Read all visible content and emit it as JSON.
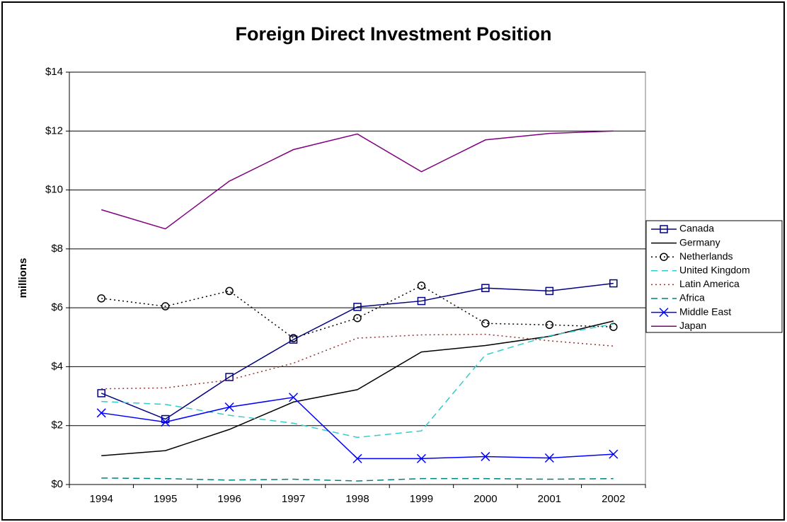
{
  "chart_data": {
    "type": "line",
    "title": "Foreign Direct Investment Position",
    "ylabel": "millions",
    "categories": [
      "1994",
      "1995",
      "1996",
      "1997",
      "1998",
      "1999",
      "2000",
      "2001",
      "2002"
    ],
    "ylim": [
      0,
      14
    ],
    "yticks": [
      {
        "value": 0,
        "label": "$0"
      },
      {
        "value": 2,
        "label": "$2"
      },
      {
        "value": 4,
        "label": "$4"
      },
      {
        "value": 6,
        "label": "$6"
      },
      {
        "value": 8,
        "label": "$8"
      },
      {
        "value": 10,
        "label": "$10"
      },
      {
        "value": 12,
        "label": "$12"
      },
      {
        "value": 14,
        "label": "$14"
      }
    ],
    "grid": true,
    "legend": "right",
    "series": [
      {
        "name": "Canada",
        "color": "#000080",
        "dash": "solid",
        "marker": "square",
        "values": [
          3.1,
          2.22,
          3.65,
          4.92,
          6.03,
          6.23,
          6.67,
          6.57,
          6.83
        ]
      },
      {
        "name": "Germany",
        "color": "#000000",
        "dash": "solid",
        "marker": "none",
        "values": [
          0.98,
          1.15,
          1.87,
          2.8,
          3.22,
          4.5,
          4.72,
          5.03,
          5.55
        ]
      },
      {
        "name": "Netherlands",
        "color": "#000000",
        "dash": "dotted",
        "marker": "circle",
        "values": [
          6.32,
          6.05,
          6.57,
          4.97,
          5.65,
          6.75,
          5.47,
          5.42,
          5.35
        ]
      },
      {
        "name": "United Kingdom",
        "color": "#33cccc",
        "dash": "dashed",
        "marker": "none",
        "values": [
          2.82,
          2.72,
          2.35,
          2.08,
          1.6,
          1.82,
          4.4,
          5.05,
          5.45
        ]
      },
      {
        "name": "Latin America",
        "color": "#993333",
        "dash": "dotted",
        "marker": "none",
        "values": [
          3.25,
          3.28,
          3.55,
          4.12,
          4.97,
          5.08,
          5.1,
          4.88,
          4.7
        ]
      },
      {
        "name": "Africa",
        "color": "#008080",
        "dash": "dashed",
        "marker": "none",
        "values": [
          0.22,
          0.2,
          0.15,
          0.18,
          0.12,
          0.2,
          0.2,
          0.18,
          0.2
        ]
      },
      {
        "name": "Middle East",
        "color": "#0000ff",
        "dash": "solid",
        "marker": "x",
        "values": [
          2.43,
          2.12,
          2.63,
          2.96,
          0.88,
          0.88,
          0.95,
          0.9,
          1.03
        ]
      },
      {
        "name": "Japan",
        "color": "#800080",
        "dash": "solid",
        "marker": "none",
        "values": [
          9.33,
          8.68,
          10.3,
          11.37,
          11.9,
          10.62,
          11.7,
          11.92,
          12.0
        ]
      }
    ]
  }
}
